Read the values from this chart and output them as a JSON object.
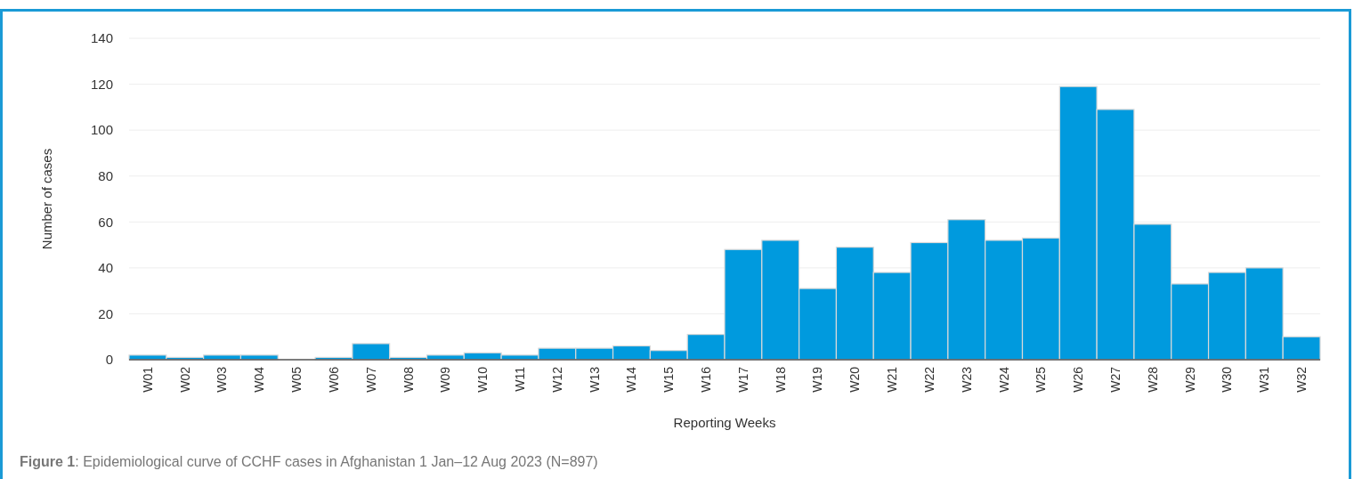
{
  "chart_data": {
    "type": "bar",
    "xlabel": "Reporting Weeks",
    "ylabel": "Number of cases",
    "categories": [
      "W01",
      "W02",
      "W03",
      "W04",
      "W05",
      "W06",
      "W07",
      "W08",
      "W09",
      "W10",
      "W11",
      "W12",
      "W13",
      "W14",
      "W15",
      "W16",
      "W17",
      "W18",
      "W19",
      "W20",
      "W21",
      "W22",
      "W23",
      "W24",
      "W25",
      "W26",
      "W27",
      "W28",
      "W29",
      "W30",
      "W31",
      "W32"
    ],
    "values": [
      2,
      1,
      2,
      2,
      0,
      1,
      7,
      1,
      2,
      3,
      2,
      5,
      5,
      6,
      4,
      11,
      48,
      52,
      31,
      49,
      38,
      51,
      61,
      52,
      53,
      119,
      109,
      59,
      33,
      38,
      40,
      10
    ],
    "color": "#009ade",
    "ylim": [
      0,
      140
    ],
    "yticks": [
      0,
      20,
      40,
      60,
      80,
      100,
      120,
      140
    ],
    "grid": "y",
    "annotations": [
      "Figure 1: Epidemiological curve of CCHF cases in Afghanistan 1 Jan–12 Aug 2023 (N=897)"
    ]
  }
}
